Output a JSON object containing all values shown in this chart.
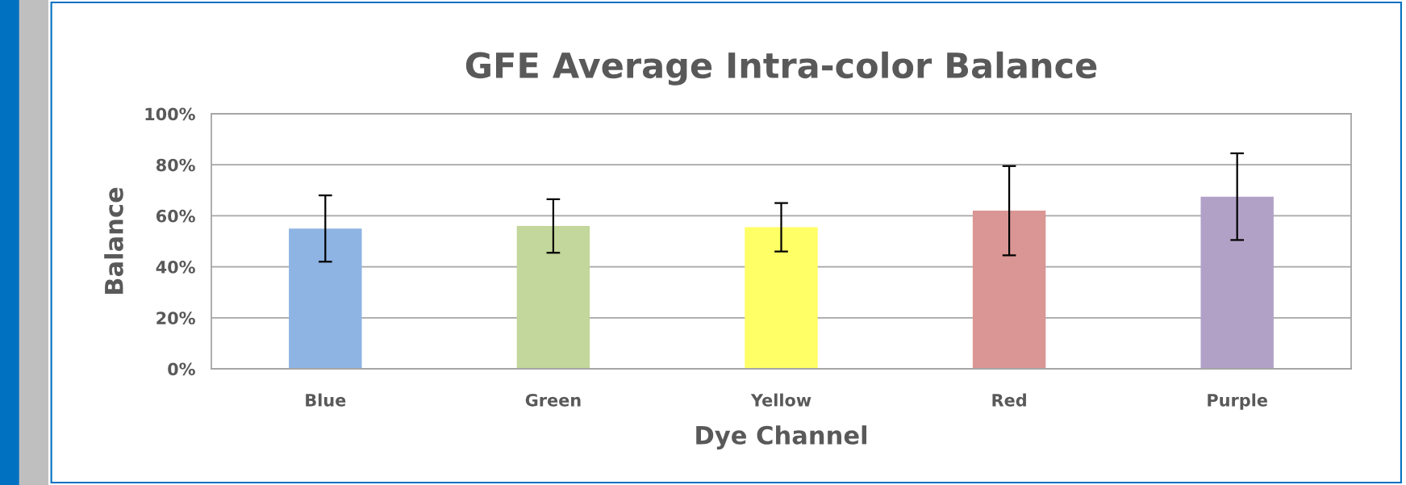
{
  "chart_data": {
    "type": "bar",
    "title": "GFE Average Intra-color Balance",
    "xlabel": "Dye Channel",
    "ylabel": "Balance",
    "categories": [
      "Blue",
      "Green",
      "Yellow",
      "Red",
      "Purple"
    ],
    "values": [
      55,
      56,
      55.5,
      62,
      67.5
    ],
    "errors": [
      13,
      10.5,
      9.5,
      17.5,
      17
    ],
    "colors": [
      "#8eb4e3",
      "#c3d69b",
      "#ffff66",
      "#d99694",
      "#b2a1c7"
    ],
    "ylim": [
      0,
      100
    ],
    "yticks": [
      {
        "value": 0,
        "label": "0%"
      },
      {
        "value": 20,
        "label": "20%"
      },
      {
        "value": 40,
        "label": "40%"
      },
      {
        "value": 60,
        "label": "60%"
      },
      {
        "value": 80,
        "label": "80%"
      },
      {
        "value": 100,
        "label": "100%"
      }
    ],
    "grid": "y",
    "legend": false
  }
}
